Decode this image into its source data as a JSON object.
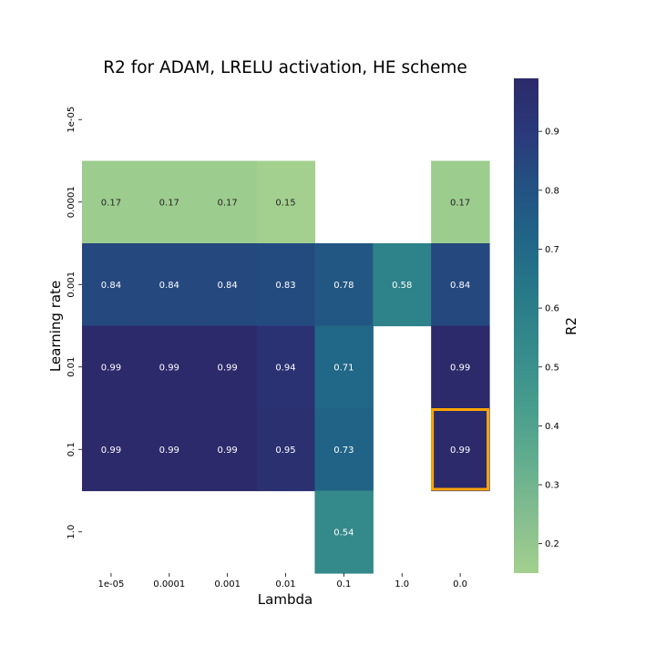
{
  "chart_data": {
    "type": "heatmap",
    "title": "R2 for ADAM, LRELU activation, HE scheme",
    "xlabel": "Lambda",
    "ylabel": "Learning rate",
    "x_categories": [
      "1e-05",
      "0.0001",
      "0.001",
      "0.01",
      "0.1",
      "1.0",
      "0.0"
    ],
    "y_categories": [
      "1e-05",
      "0.0001",
      "0.001",
      "0.01",
      "0.1",
      "1.0"
    ],
    "values": [
      [
        null,
        null,
        null,
        null,
        null,
        null,
        null
      ],
      [
        0.17,
        0.17,
        0.17,
        0.15,
        null,
        null,
        0.17
      ],
      [
        0.84,
        0.84,
        0.84,
        0.83,
        0.78,
        0.58,
        0.84
      ],
      [
        0.99,
        0.99,
        0.99,
        0.94,
        0.71,
        null,
        0.99
      ],
      [
        0.99,
        0.99,
        0.99,
        0.95,
        0.73,
        null,
        0.99
      ],
      [
        null,
        null,
        null,
        null,
        0.54,
        null,
        null
      ]
    ],
    "highlight": {
      "row": "0.1",
      "column": "0.0",
      "color": "#FFA500"
    },
    "colorbar": {
      "label": "R2",
      "range": [
        0.15,
        0.99
      ],
      "ticks": [
        "0.2",
        "0.3",
        "0.4",
        "0.5",
        "0.6",
        "0.7",
        "0.8",
        "0.9"
      ],
      "colormap": "crest",
      "colors": [
        "#a3d08f",
        "#86be8f",
        "#63ae8f",
        "#489d8d",
        "#368c8b",
        "#287b88",
        "#216787",
        "#225282",
        "#2a397a",
        "#2c2a6a"
      ]
    }
  }
}
